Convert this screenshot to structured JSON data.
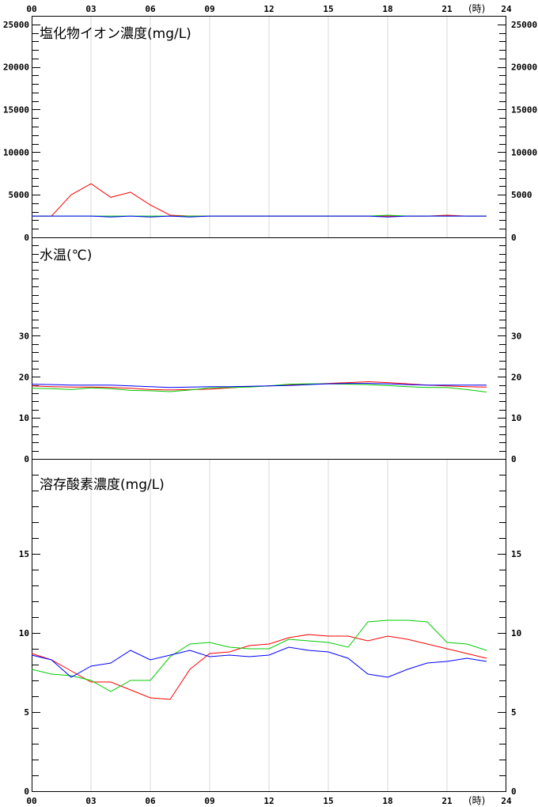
{
  "x_axis": {
    "tick_labels": [
      "00",
      "03",
      "06",
      "09",
      "12",
      "15",
      "18",
      "21",
      "24"
    ],
    "tick_hours": [
      0,
      3,
      6,
      9,
      12,
      15,
      18,
      21,
      24
    ],
    "unit_label": "(時)"
  },
  "chart_data": [
    {
      "type": "line",
      "title": "塩化物イオン濃度(mg/L)",
      "ylim": [
        0,
        26000
      ],
      "y_tick_values": [
        0,
        5000,
        10000,
        15000,
        20000,
        25000
      ],
      "y_tick_labels": [
        "0",
        "5000",
        "10000",
        "15000",
        "20000",
        "25000"
      ],
      "grid": "vertical",
      "x": [
        0,
        1,
        2,
        3,
        4,
        5,
        6,
        7,
        8,
        9,
        10,
        11,
        12,
        13,
        14,
        15,
        16,
        17,
        18,
        19,
        20,
        21,
        22,
        23
      ],
      "series": [
        {
          "color": "#ff0000",
          "values": [
            2500,
            2500,
            5000,
            6300,
            4700,
            5300,
            3800,
            2600,
            2500,
            2500,
            2500,
            2500,
            2500,
            2500,
            2500,
            2500,
            2500,
            2500,
            2500,
            2500,
            2500,
            2600,
            2500,
            2500
          ]
        },
        {
          "color": "#00cc00",
          "values": [
            2500,
            2500,
            2500,
            2500,
            2500,
            2500,
            2500,
            2500,
            2500,
            2500,
            2500,
            2500,
            2500,
            2500,
            2500,
            2500,
            2500,
            2500,
            2600,
            2500,
            2500,
            2500,
            2500,
            2500
          ]
        },
        {
          "color": "#0000ff",
          "values": [
            2500,
            2500,
            2500,
            2500,
            2400,
            2500,
            2400,
            2500,
            2400,
            2500,
            2500,
            2500,
            2500,
            2500,
            2500,
            2500,
            2500,
            2500,
            2400,
            2500,
            2500,
            2500,
            2500,
            2500
          ]
        }
      ]
    },
    {
      "type": "line",
      "title": "水温(℃)",
      "ylim": [
        0,
        54
      ],
      "y_tick_values": [
        0,
        10,
        20,
        30
      ],
      "y_tick_labels": [
        "0",
        "10",
        "20",
        "30"
      ],
      "grid": "none",
      "x": [
        0,
        1,
        2,
        3,
        4,
        5,
        6,
        7,
        8,
        9,
        10,
        11,
        12,
        13,
        14,
        15,
        16,
        17,
        18,
        19,
        20,
        21,
        22,
        23
      ],
      "series": [
        {
          "color": "#ff0000",
          "values": [
            17.8,
            17.6,
            17.5,
            17.5,
            17.4,
            17.2,
            16.9,
            16.8,
            16.9,
            17.0,
            17.3,
            17.6,
            17.8,
            18.0,
            18.2,
            18.4,
            18.6,
            18.8,
            18.6,
            18.3,
            18.0,
            17.8,
            17.6,
            17.5
          ]
        },
        {
          "color": "#00cc00",
          "values": [
            17.2,
            17.1,
            16.9,
            17.3,
            17.1,
            16.7,
            16.6,
            16.4,
            16.8,
            17.3,
            17.4,
            17.5,
            17.8,
            18.2,
            18.3,
            18.3,
            18.2,
            18.1,
            17.9,
            17.6,
            17.4,
            17.4,
            16.9,
            16.3
          ]
        },
        {
          "color": "#0000ff",
          "values": [
            18.2,
            18.1,
            18.0,
            18.0,
            18.0,
            17.8,
            17.6,
            17.4,
            17.5,
            17.6,
            17.6,
            17.7,
            17.8,
            17.9,
            18.1,
            18.3,
            18.4,
            18.4,
            18.3,
            18.1,
            18.0,
            18.0,
            18.0,
            18.0
          ]
        }
      ]
    },
    {
      "type": "line",
      "title": "溶存酸素濃度(mg/L)",
      "ylim": [
        0,
        21
      ],
      "y_tick_values": [
        0,
        5,
        10,
        15
      ],
      "y_tick_labels": [
        "0",
        "5",
        "10",
        "15"
      ],
      "grid": "vertical",
      "x": [
        0,
        1,
        2,
        3,
        4,
        5,
        6,
        7,
        8,
        9,
        10,
        11,
        12,
        13,
        14,
        15,
        16,
        17,
        18,
        19,
        20,
        21,
        22,
        23
      ],
      "series": [
        {
          "color": "#ff0000",
          "values": [
            8.7,
            8.3,
            7.6,
            6.9,
            6.9,
            6.4,
            5.9,
            5.8,
            7.7,
            8.7,
            8.8,
            9.2,
            9.3,
            9.7,
            9.9,
            9.8,
            9.8,
            9.5,
            9.8,
            9.6,
            9.3,
            9.0,
            8.7,
            8.4
          ]
        },
        {
          "color": "#00cc00",
          "values": [
            7.7,
            7.4,
            7.3,
            7.0,
            6.3,
            7.0,
            7.0,
            8.5,
            9.3,
            9.4,
            9.1,
            9.0,
            9.0,
            9.6,
            9.5,
            9.4,
            9.1,
            10.7,
            10.8,
            10.8,
            10.7,
            9.4,
            9.3,
            8.9
          ]
        },
        {
          "color": "#0000ff",
          "values": [
            8.6,
            8.3,
            7.2,
            7.9,
            8.1,
            8.9,
            8.3,
            8.6,
            8.9,
            8.5,
            8.6,
            8.5,
            8.6,
            9.1,
            8.9,
            8.8,
            8.4,
            7.4,
            7.2,
            7.7,
            8.1,
            8.2,
            8.4,
            8.2
          ]
        }
      ]
    }
  ]
}
